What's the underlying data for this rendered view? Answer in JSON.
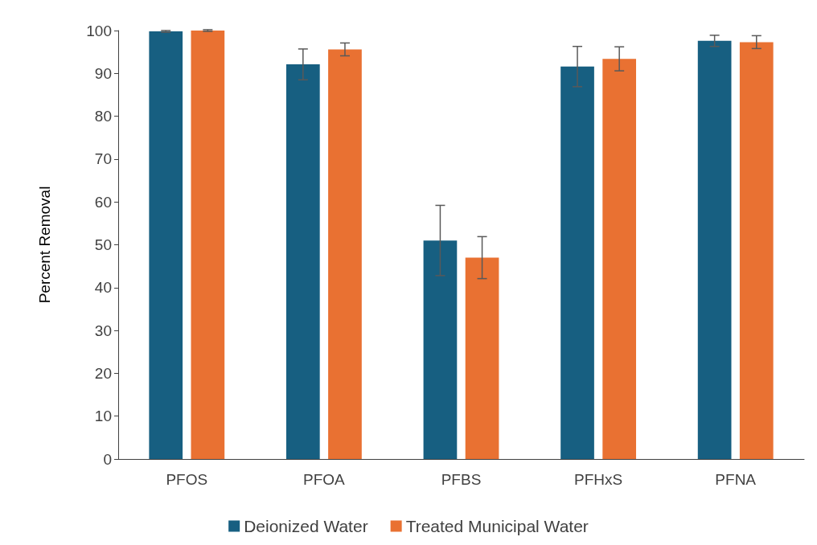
{
  "chart_data": {
    "type": "bar",
    "ylabel": "Percent Removal",
    "categories": [
      "PFOS",
      "PFOA",
      "PFBS",
      "PFHxS",
      "PFNA"
    ],
    "series": [
      {
        "name": "Deionized Water",
        "color": "#175f81",
        "values": [
          99.8,
          92.1,
          51.0,
          91.6,
          97.6
        ],
        "errors": [
          0.2,
          3.6,
          8.2,
          4.7,
          1.3
        ]
      },
      {
        "name": "Treated Municipal Water",
        "color": "#e97132",
        "values": [
          100,
          95.6,
          47.0,
          93.4,
          97.3
        ],
        "errors": [
          0.2,
          1.5,
          4.9,
          2.8,
          1.5
        ]
      }
    ],
    "ylim": [
      0,
      100
    ],
    "yticks": [
      0,
      10,
      20,
      30,
      40,
      50,
      60,
      70,
      80,
      90,
      100
    ],
    "grid": false,
    "legend": "bottom"
  }
}
